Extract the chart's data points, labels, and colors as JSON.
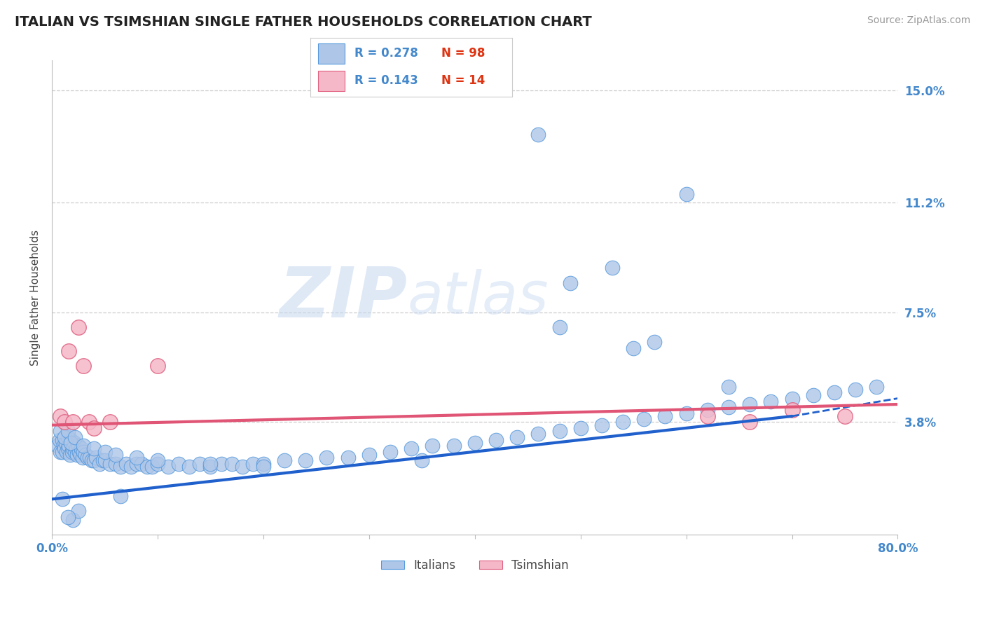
{
  "title": "ITALIAN VS TSIMSHIAN SINGLE FATHER HOUSEHOLDS CORRELATION CHART",
  "source_text": "Source: ZipAtlas.com",
  "ylabel": "Single Father Households",
  "xlim": [
    0.0,
    0.8
  ],
  "ylim": [
    0.0,
    0.16
  ],
  "yticks": [
    0.038,
    0.075,
    0.112,
    0.15
  ],
  "ytick_labels": [
    "3.8%",
    "7.5%",
    "11.2%",
    "15.0%"
  ],
  "title_fontsize": 14,
  "label_fontsize": 11,
  "tick_fontsize": 12,
  "source_fontsize": 10,
  "italian_color": "#aec6e8",
  "italian_edge_color": "#5599dd",
  "tsimshian_color": "#f5b8c8",
  "tsimshian_edge_color": "#e06080",
  "trend_italian_color": "#2060cc",
  "trend_tsimshian_color": "#e05575",
  "axis_color": "#4488cc",
  "legend_text_color": "#4488cc",
  "n_color": "#dd3311",
  "background_color": "#ffffff",
  "watermark_zip_color": "#c5d8f0",
  "watermark_atlas_color": "#c5d8f0",
  "italian_x": [
    0.005,
    0.007,
    0.008,
    0.01,
    0.01,
    0.011,
    0.012,
    0.013,
    0.014,
    0.015,
    0.015,
    0.016,
    0.017,
    0.018,
    0.019,
    0.02,
    0.02,
    0.021,
    0.022,
    0.023,
    0.024,
    0.025,
    0.026,
    0.027,
    0.028,
    0.029,
    0.03,
    0.032,
    0.034,
    0.036,
    0.038,
    0.04,
    0.042,
    0.045,
    0.048,
    0.05,
    0.055,
    0.06,
    0.065,
    0.07,
    0.075,
    0.08,
    0.085,
    0.09,
    0.095,
    0.1,
    0.11,
    0.12,
    0.13,
    0.14,
    0.15,
    0.16,
    0.17,
    0.18,
    0.19,
    0.2,
    0.22,
    0.24,
    0.26,
    0.28,
    0.3,
    0.32,
    0.34,
    0.36,
    0.38,
    0.4,
    0.42,
    0.44,
    0.46,
    0.48,
    0.5,
    0.52,
    0.54,
    0.56,
    0.58,
    0.6,
    0.62,
    0.64,
    0.66,
    0.68,
    0.7,
    0.72,
    0.74,
    0.76,
    0.78,
    0.008,
    0.012,
    0.015,
    0.018,
    0.022,
    0.03,
    0.04,
    0.05,
    0.06,
    0.08,
    0.1,
    0.15,
    0.2,
    0.35
  ],
  "italian_y": [
    0.03,
    0.032,
    0.028,
    0.032,
    0.028,
    0.03,
    0.029,
    0.031,
    0.028,
    0.033,
    0.029,
    0.03,
    0.027,
    0.032,
    0.028,
    0.03,
    0.029,
    0.031,
    0.028,
    0.029,
    0.027,
    0.03,
    0.028,
    0.027,
    0.029,
    0.026,
    0.028,
    0.027,
    0.026,
    0.026,
    0.025,
    0.025,
    0.026,
    0.024,
    0.025,
    0.025,
    0.024,
    0.024,
    0.023,
    0.024,
    0.023,
    0.024,
    0.024,
    0.023,
    0.023,
    0.024,
    0.023,
    0.024,
    0.023,
    0.024,
    0.023,
    0.024,
    0.024,
    0.023,
    0.024,
    0.024,
    0.025,
    0.025,
    0.026,
    0.026,
    0.027,
    0.028,
    0.029,
    0.03,
    0.03,
    0.031,
    0.032,
    0.033,
    0.034,
    0.035,
    0.036,
    0.037,
    0.038,
    0.039,
    0.04,
    0.041,
    0.042,
    0.043,
    0.044,
    0.045,
    0.046,
    0.047,
    0.048,
    0.049,
    0.05,
    0.035,
    0.033,
    0.035,
    0.031,
    0.033,
    0.03,
    0.029,
    0.028,
    0.027,
    0.026,
    0.025,
    0.024,
    0.023,
    0.025
  ],
  "italian_outlier_x": [
    0.46,
    0.6,
    0.49,
    0.53,
    0.48,
    0.57,
    0.55,
    0.64,
    0.065,
    0.02,
    0.025,
    0.015,
    0.01
  ],
  "italian_outlier_y": [
    0.135,
    0.115,
    0.085,
    0.09,
    0.07,
    0.065,
    0.063,
    0.05,
    0.013,
    0.005,
    0.008,
    0.006,
    0.012
  ],
  "tsimshian_x": [
    0.008,
    0.012,
    0.016,
    0.02,
    0.025,
    0.03,
    0.035,
    0.04,
    0.055,
    0.1,
    0.62,
    0.66,
    0.7,
    0.75
  ],
  "tsimshian_y": [
    0.04,
    0.038,
    0.062,
    0.038,
    0.07,
    0.057,
    0.038,
    0.036,
    0.038,
    0.057,
    0.04,
    0.038,
    0.042,
    0.04
  ],
  "trend_it_x0": 0.0,
  "trend_it_y0": 0.012,
  "trend_it_x1": 0.7,
  "trend_it_y1": 0.04,
  "trend_it_dash_x0": 0.7,
  "trend_it_dash_y0": 0.04,
  "trend_it_dash_x1": 0.8,
  "trend_it_dash_y1": 0.046,
  "trend_ts_x0": 0.0,
  "trend_ts_y0": 0.037,
  "trend_ts_x1": 0.8,
  "trend_ts_y1": 0.044
}
